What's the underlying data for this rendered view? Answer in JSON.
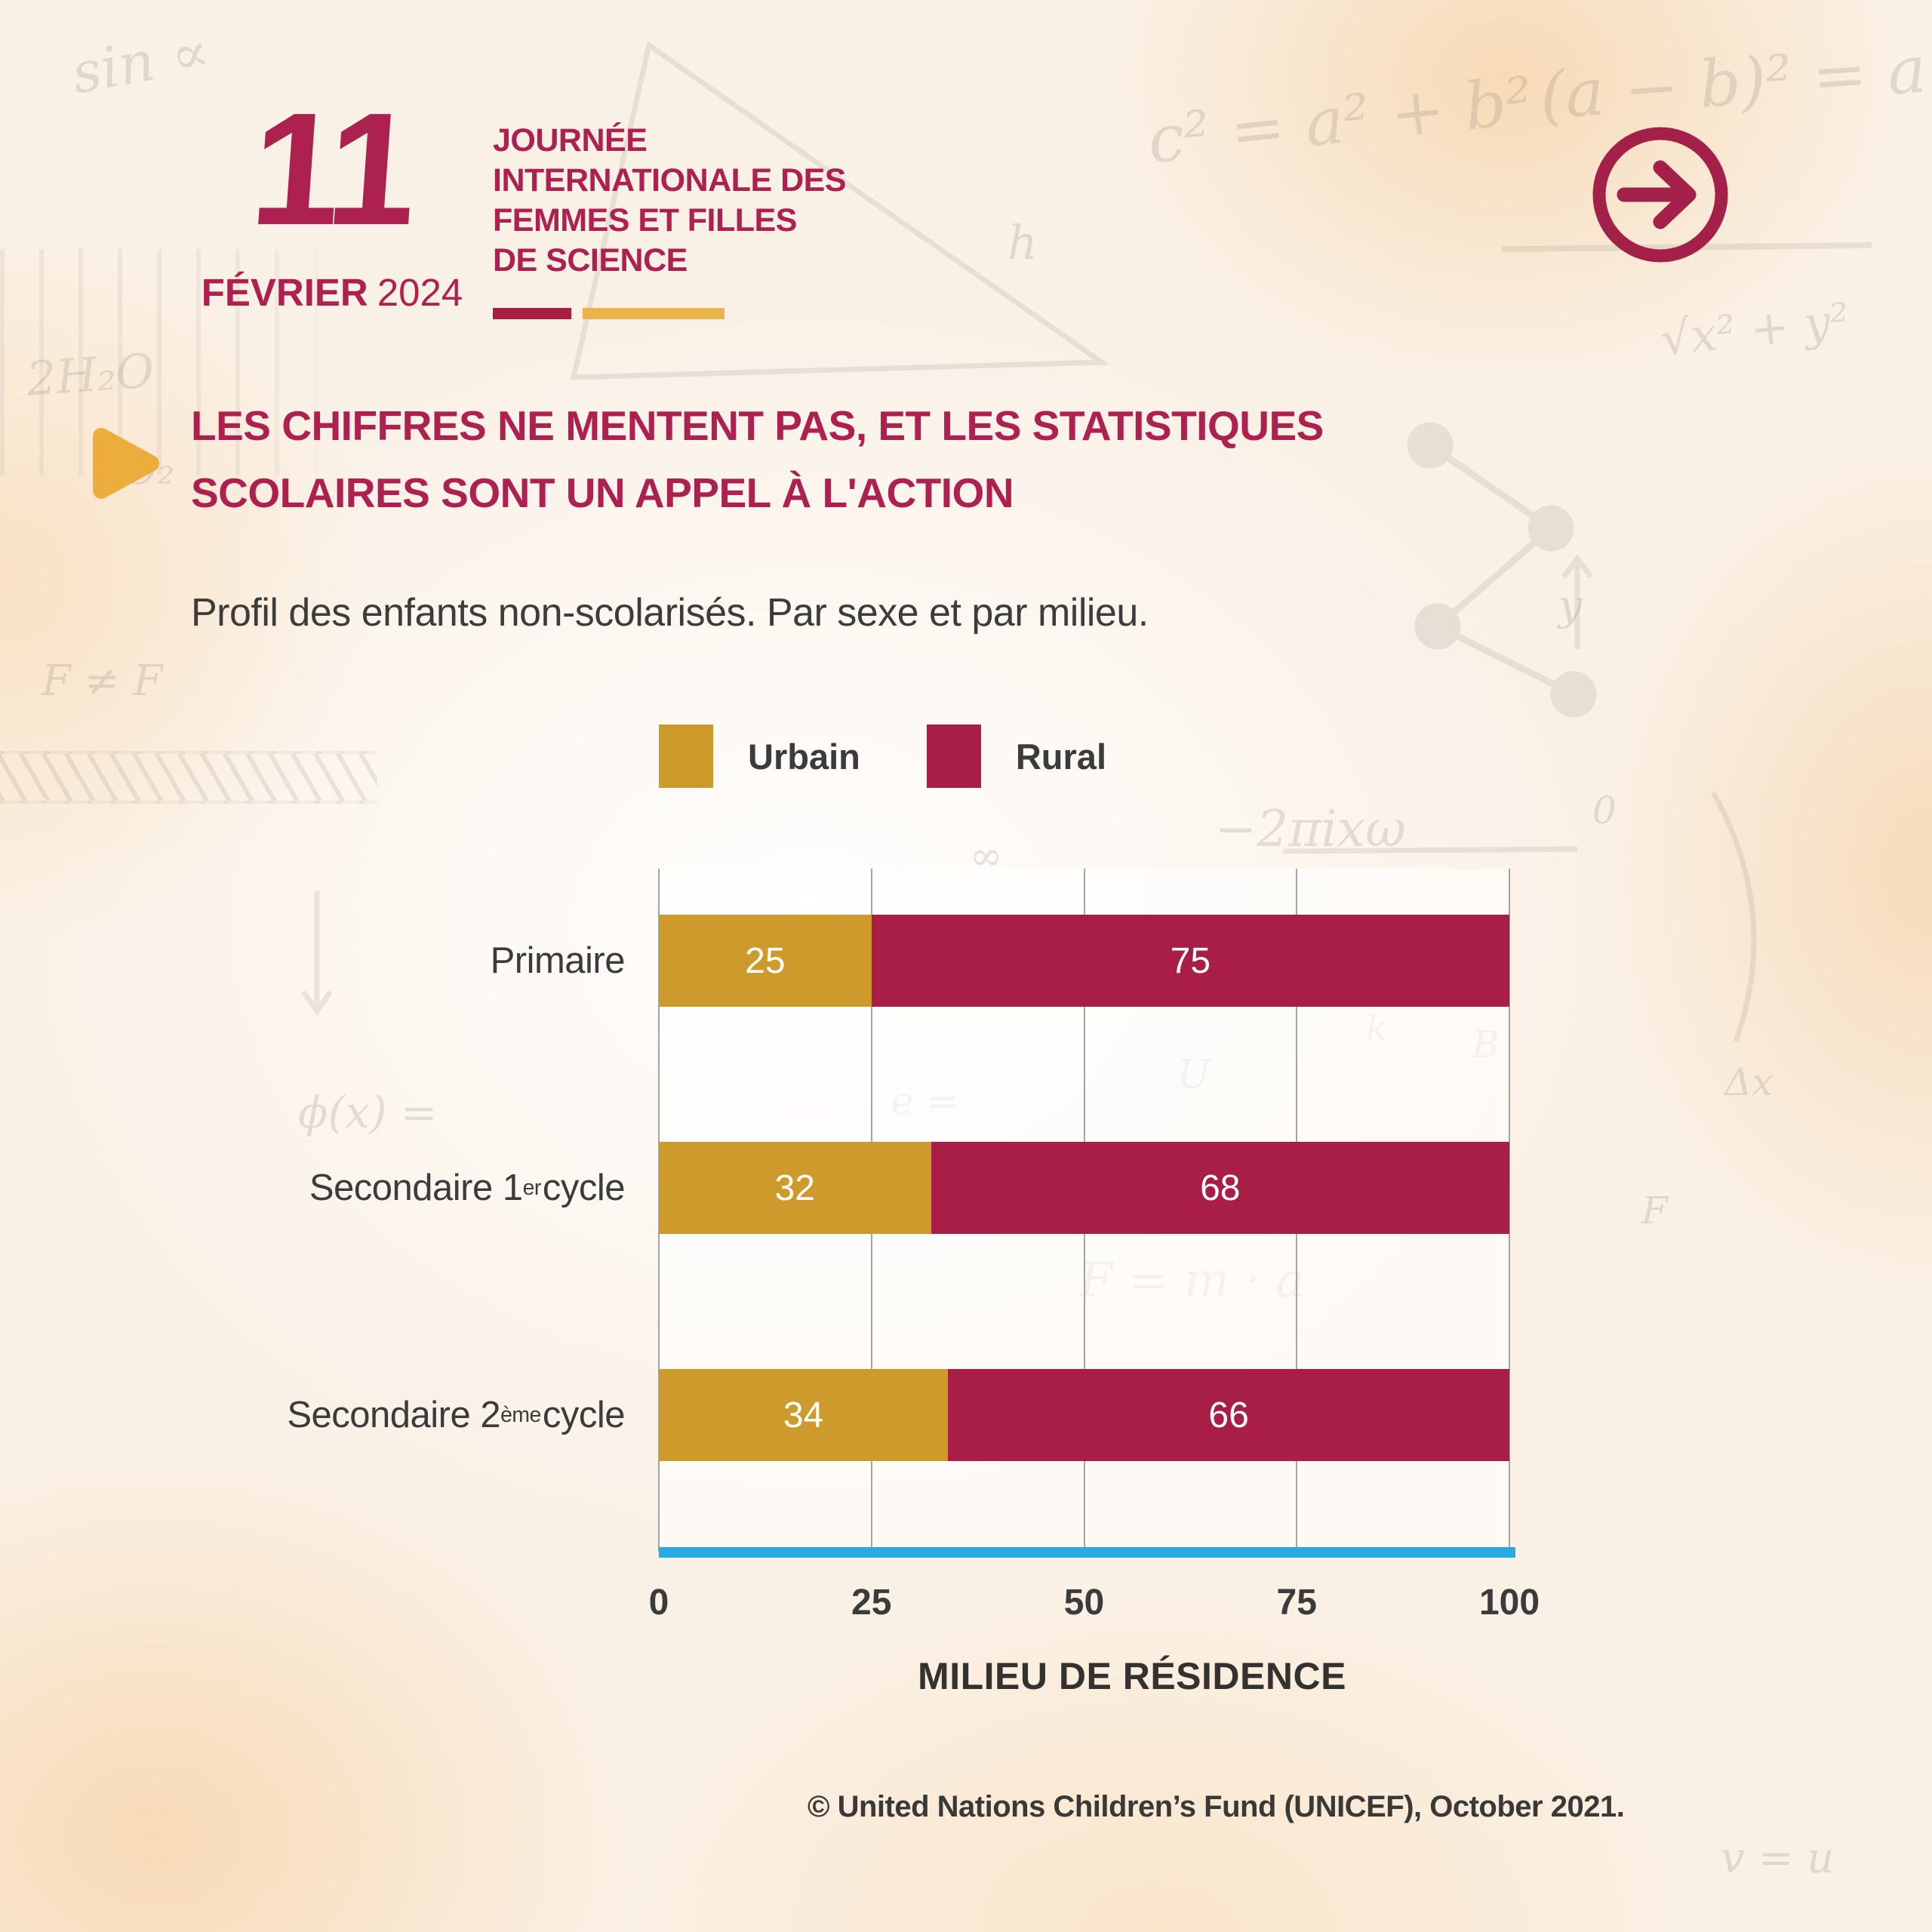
{
  "header": {
    "day": "11",
    "month": "FÉVRIER",
    "year": "2024",
    "event_title_lines": [
      "JOURNÉE",
      "INTERNATIONALE DES",
      "FEMMES ET FILLES",
      "DE SCIENCE"
    ],
    "next_icon": "arrow-right-circle-icon"
  },
  "headline": {
    "marker_icon": "play-triangle-icon",
    "text": "LES CHIFFRES NE MENTENT PAS, ET LES STATISTIQUES SCOLAIRES SONT UN APPEL À L'ACTION"
  },
  "subtitle": "Profil des enfants non-scolarisés. Par sexe et par milieu.",
  "chart_data": {
    "type": "bar",
    "orientation": "horizontal",
    "stacked": true,
    "title": "Profil des enfants non-scolarisés. Par sexe et par milieu.",
    "categories": [
      {
        "base": "Primaire",
        "sup": "",
        "rest": ""
      },
      {
        "base": "Secondaire 1",
        "sup": "er",
        "rest": " cycle"
      },
      {
        "base": "Secondaire 2",
        "sup": "ème",
        "rest": " cycle"
      }
    ],
    "series": [
      {
        "name": "Urbain",
        "color": "#CE9A2C",
        "values": [
          25,
          32,
          34
        ]
      },
      {
        "name": "Rural",
        "color": "#A91E46",
        "values": [
          75,
          68,
          66
        ]
      }
    ],
    "xticks": [
      0,
      25,
      50,
      75,
      100
    ],
    "xlim": [
      0,
      100
    ],
    "xlabel": "MILIEU DE RÉSIDENCE",
    "legend_position": "top",
    "grid": "vertical",
    "baseline_color": "#29ABE2",
    "value_label_color": "#FFFFFF"
  },
  "footer": {
    "credit": "© United Nations Children’s Fund (UNICEF), October 2021."
  },
  "colors": {
    "maroon_text": "#AC2150",
    "maroon_bar": "#A91E46",
    "gold_bar": "#CE9A2C",
    "gold_accent": "#EDAD3D",
    "gold_underline": "#E9B54A",
    "axis_blue": "#29ABE2",
    "text_dark": "#3B3B3B"
  },
  "doodles": [
    "sin ∝",
    "c² = a² + b²",
    "(a − b)² = a",
    "√x² + y²",
    "−2πixω",
    "F = m · a",
    "F ≠ F",
    "ϕ(x) =",
    "2H₂O",
    "CO₂",
    "e =",
    "U",
    "y",
    "h",
    "B",
    "Δx",
    "F",
    "0",
    "∞",
    "k",
    "v = u"
  ]
}
